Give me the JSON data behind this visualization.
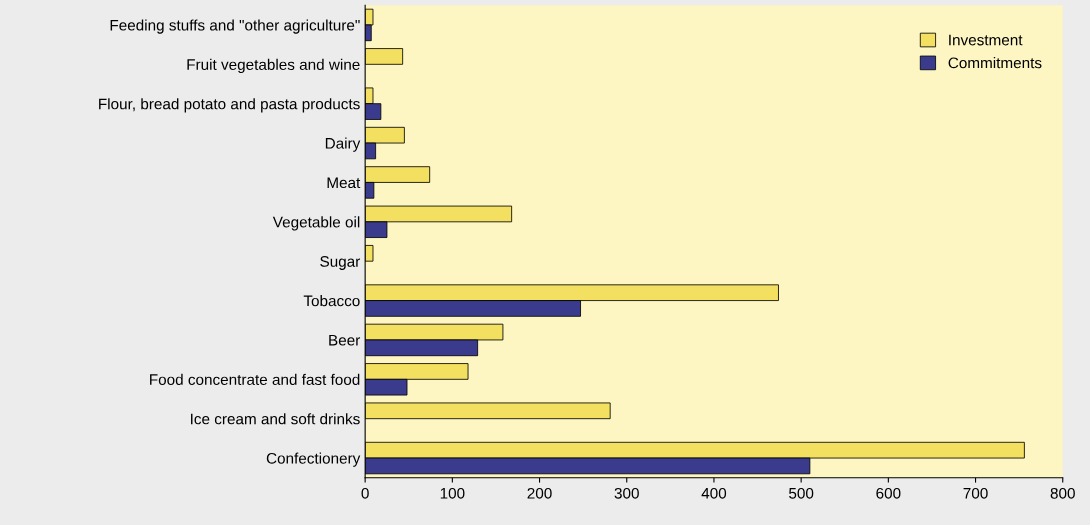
{
  "chart_data": {
    "type": "bar",
    "orientation": "horizontal",
    "categories": [
      "Feeding stuffs and \"other agriculture\"",
      "Fruit vegetables and wine",
      "Flour, bread potato and pasta products",
      "Dairy",
      "Meat",
      "Vegetable oil",
      "Sugar",
      "Tobacco",
      "Beer",
      "Food concentrate and fast food",
      "Ice cream and soft drinks",
      "Confectionery"
    ],
    "series": [
      {
        "name": "Investment",
        "color": "#f3e060",
        "values": [
          9,
          43,
          9,
          45,
          74,
          168,
          9,
          474,
          158,
          118,
          281,
          756
        ]
      },
      {
        "name": "Commitments",
        "color": "#3b3b8e",
        "values": [
          7,
          null,
          18,
          12,
          10,
          25,
          null,
          247,
          129,
          48,
          null,
          510
        ]
      }
    ],
    "xlim": [
      0,
      800
    ],
    "xticks": [
      0,
      100,
      200,
      300,
      400,
      500,
      600,
      700,
      800
    ],
    "grid": false,
    "legend": "top right"
  }
}
